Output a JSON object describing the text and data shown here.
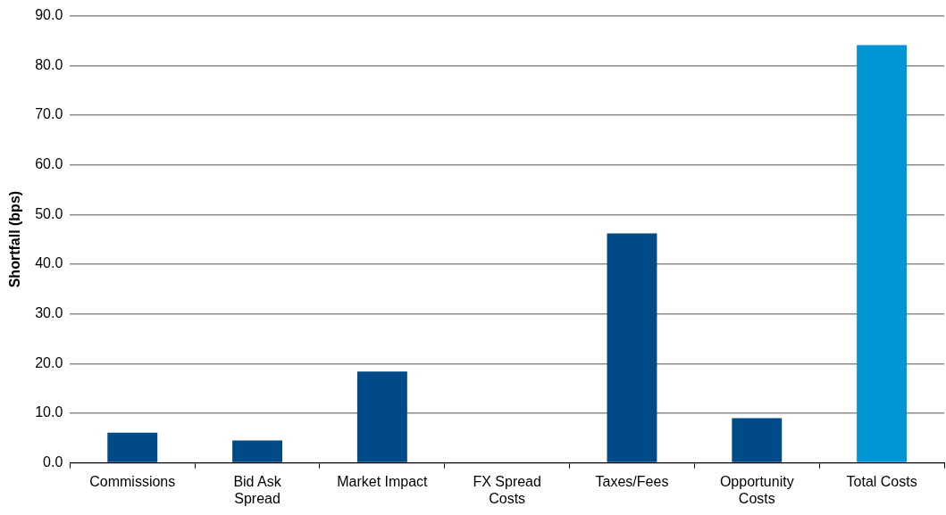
{
  "chart_data": {
    "type": "bar",
    "ylabel": "Shortfall (bps)",
    "categories": [
      "Commissions",
      "Bid Ask Spread",
      "Market Impact",
      "FX Spread Costs",
      "Taxes/Fees",
      "Opportunity Costs",
      "Total Costs"
    ],
    "values": [
      6.1,
      4.5,
      18.4,
      0,
      46.2,
      9.0,
      84.1
    ],
    "colors": [
      "#004b87",
      "#004b87",
      "#004b87",
      "#004b87",
      "#004b87",
      "#004b87",
      "#0095d5"
    ],
    "ylim": [
      0,
      90
    ],
    "yticks": [
      {
        "value": 0,
        "label": "0.0"
      },
      {
        "value": 10,
        "label": "10.0"
      },
      {
        "value": 20,
        "label": "20.0"
      },
      {
        "value": 30,
        "label": "30.0"
      },
      {
        "value": 40,
        "label": "40.0"
      },
      {
        "value": 50,
        "label": "50.0"
      },
      {
        "value": 60,
        "label": "60.0"
      },
      {
        "value": 70,
        "label": "70.0"
      },
      {
        "value": 80,
        "label": "80.0"
      },
      {
        "value": 90,
        "label": "90.0"
      }
    ],
    "grid": "y",
    "legend": false
  }
}
